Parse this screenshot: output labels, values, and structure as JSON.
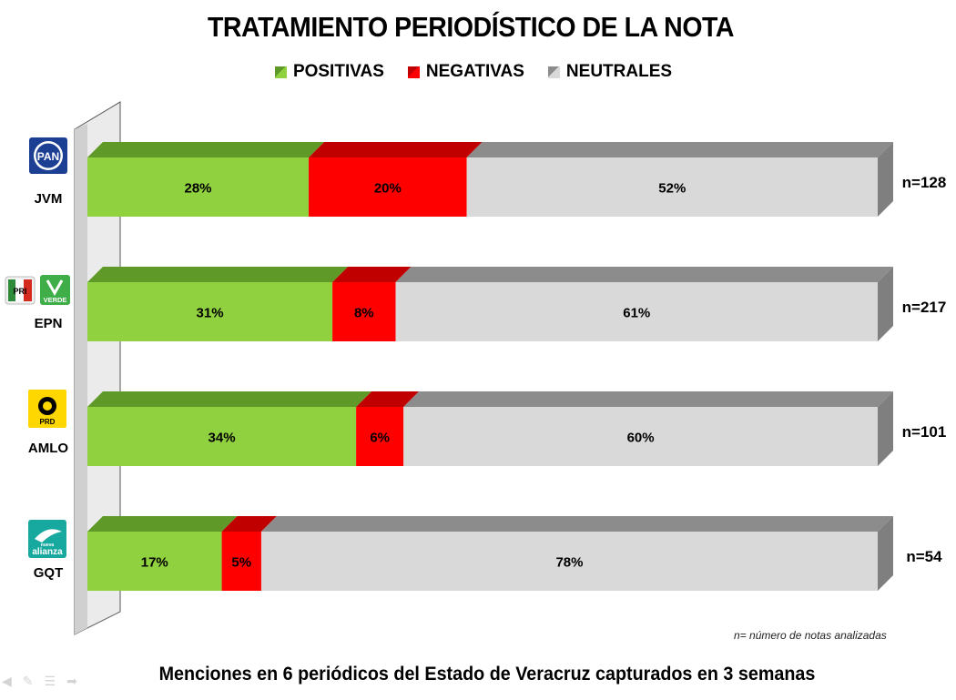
{
  "title": "TRATAMIENTO PERIODÍSTICO DE LA NOTA",
  "subtitle": "Menciones en 6 periódicos del Estado de Veracruz capturados en 3 semanas",
  "footnote": "n= número de notas analizadas",
  "colors": {
    "positive": "#8fd13f",
    "positive_top": "#5f9a28",
    "negative": "#ff0000",
    "negative_top": "#c00000",
    "neutral": "#d9d9d9",
    "neutral_top": "#8c8c8c",
    "neutral_side": "#7f7f7f"
  },
  "logos": {
    "JVM": {
      "icon": "pan-logo-icon",
      "text": "PAN"
    },
    "EPN": {
      "icon": "pri-verde-logo-icon",
      "text": "PRI",
      "text2": "VERDE"
    },
    "AMLO": {
      "icon": "prd-logo-icon",
      "text": "PRD"
    },
    "GQT": {
      "icon": "nueva-alianza-logo-icon",
      "text": "alianza",
      "text2": "nueva"
    }
  },
  "chart_data": {
    "type": "bar",
    "orientation": "horizontal",
    "stacked": true,
    "percent_scale": [
      0,
      100
    ],
    "categories": [
      "JVM",
      "EPN",
      "AMLO",
      "GQT"
    ],
    "series": [
      {
        "name": "POSITIVAS",
        "values": [
          28,
          31,
          34,
          17
        ]
      },
      {
        "name": "NEGATIVAS",
        "values": [
          20,
          8,
          6,
          5
        ]
      },
      {
        "name": "NEUTRALES",
        "values": [
          52,
          61,
          60,
          78
        ]
      }
    ],
    "value_labels": [
      [
        "28%",
        "20%",
        "52%"
      ],
      [
        "31%",
        "8%",
        "61%"
      ],
      [
        "34%",
        "6%",
        "60%"
      ],
      [
        "17%",
        "5%",
        "78%"
      ]
    ],
    "sample_sizes": [
      "n=128",
      "n=217",
      "n=101",
      "n=54"
    ],
    "legend_position": "top",
    "grid": false
  }
}
